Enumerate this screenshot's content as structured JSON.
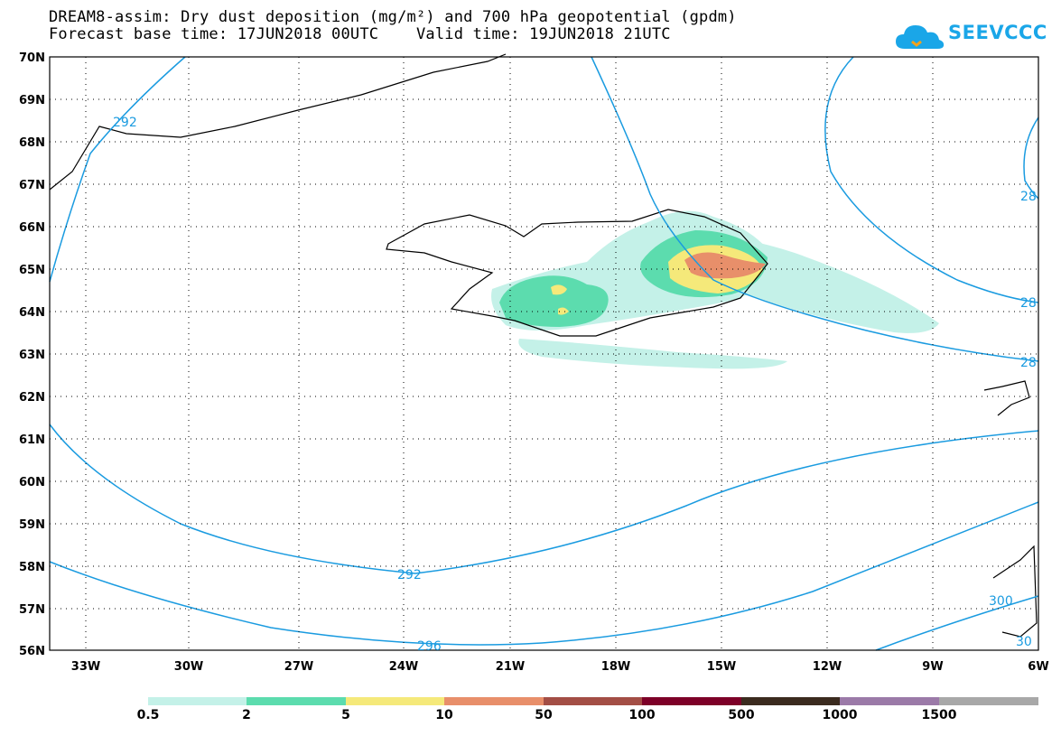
{
  "title": {
    "line1": "DREAM8-assim: Dry dust deposition (mg/m²) and 700 hPa geopotential (gpdm)",
    "line2": "Forecast base time: 17JUN2018 00UTC    Valid time: 19JUN2018 21UTC"
  },
  "logo": {
    "text": "SEEVCCC",
    "icon": "cloud-icon",
    "color": "#1aa6e8"
  },
  "map": {
    "lat_labels": [
      "70N",
      "69N",
      "68N",
      "67N",
      "66N",
      "65N",
      "64N",
      "63N",
      "62N",
      "61N",
      "60N",
      "59N",
      "58N",
      "57N",
      "56N"
    ],
    "lon_labels": [
      "33W",
      "30W",
      "27W",
      "24W",
      "21W",
      "18W",
      "15W",
      "12W",
      "9W",
      "6W"
    ],
    "contour_color": "#1a9be0",
    "contour_labels": [
      "292",
      "28",
      "28",
      "28",
      "292",
      "296",
      "300",
      "30"
    ]
  },
  "legend": {
    "colors": [
      "#c4f1e8",
      "#5cdcae",
      "#f5e97a",
      "#e88f6a",
      "#a34e45",
      "#7d0028",
      "#3b2b1f",
      "#9b7aa8",
      "#a8a8a8"
    ],
    "labels": [
      "0.5",
      "2",
      "5",
      "10",
      "50",
      "100",
      "500",
      "1000",
      "1500"
    ]
  }
}
